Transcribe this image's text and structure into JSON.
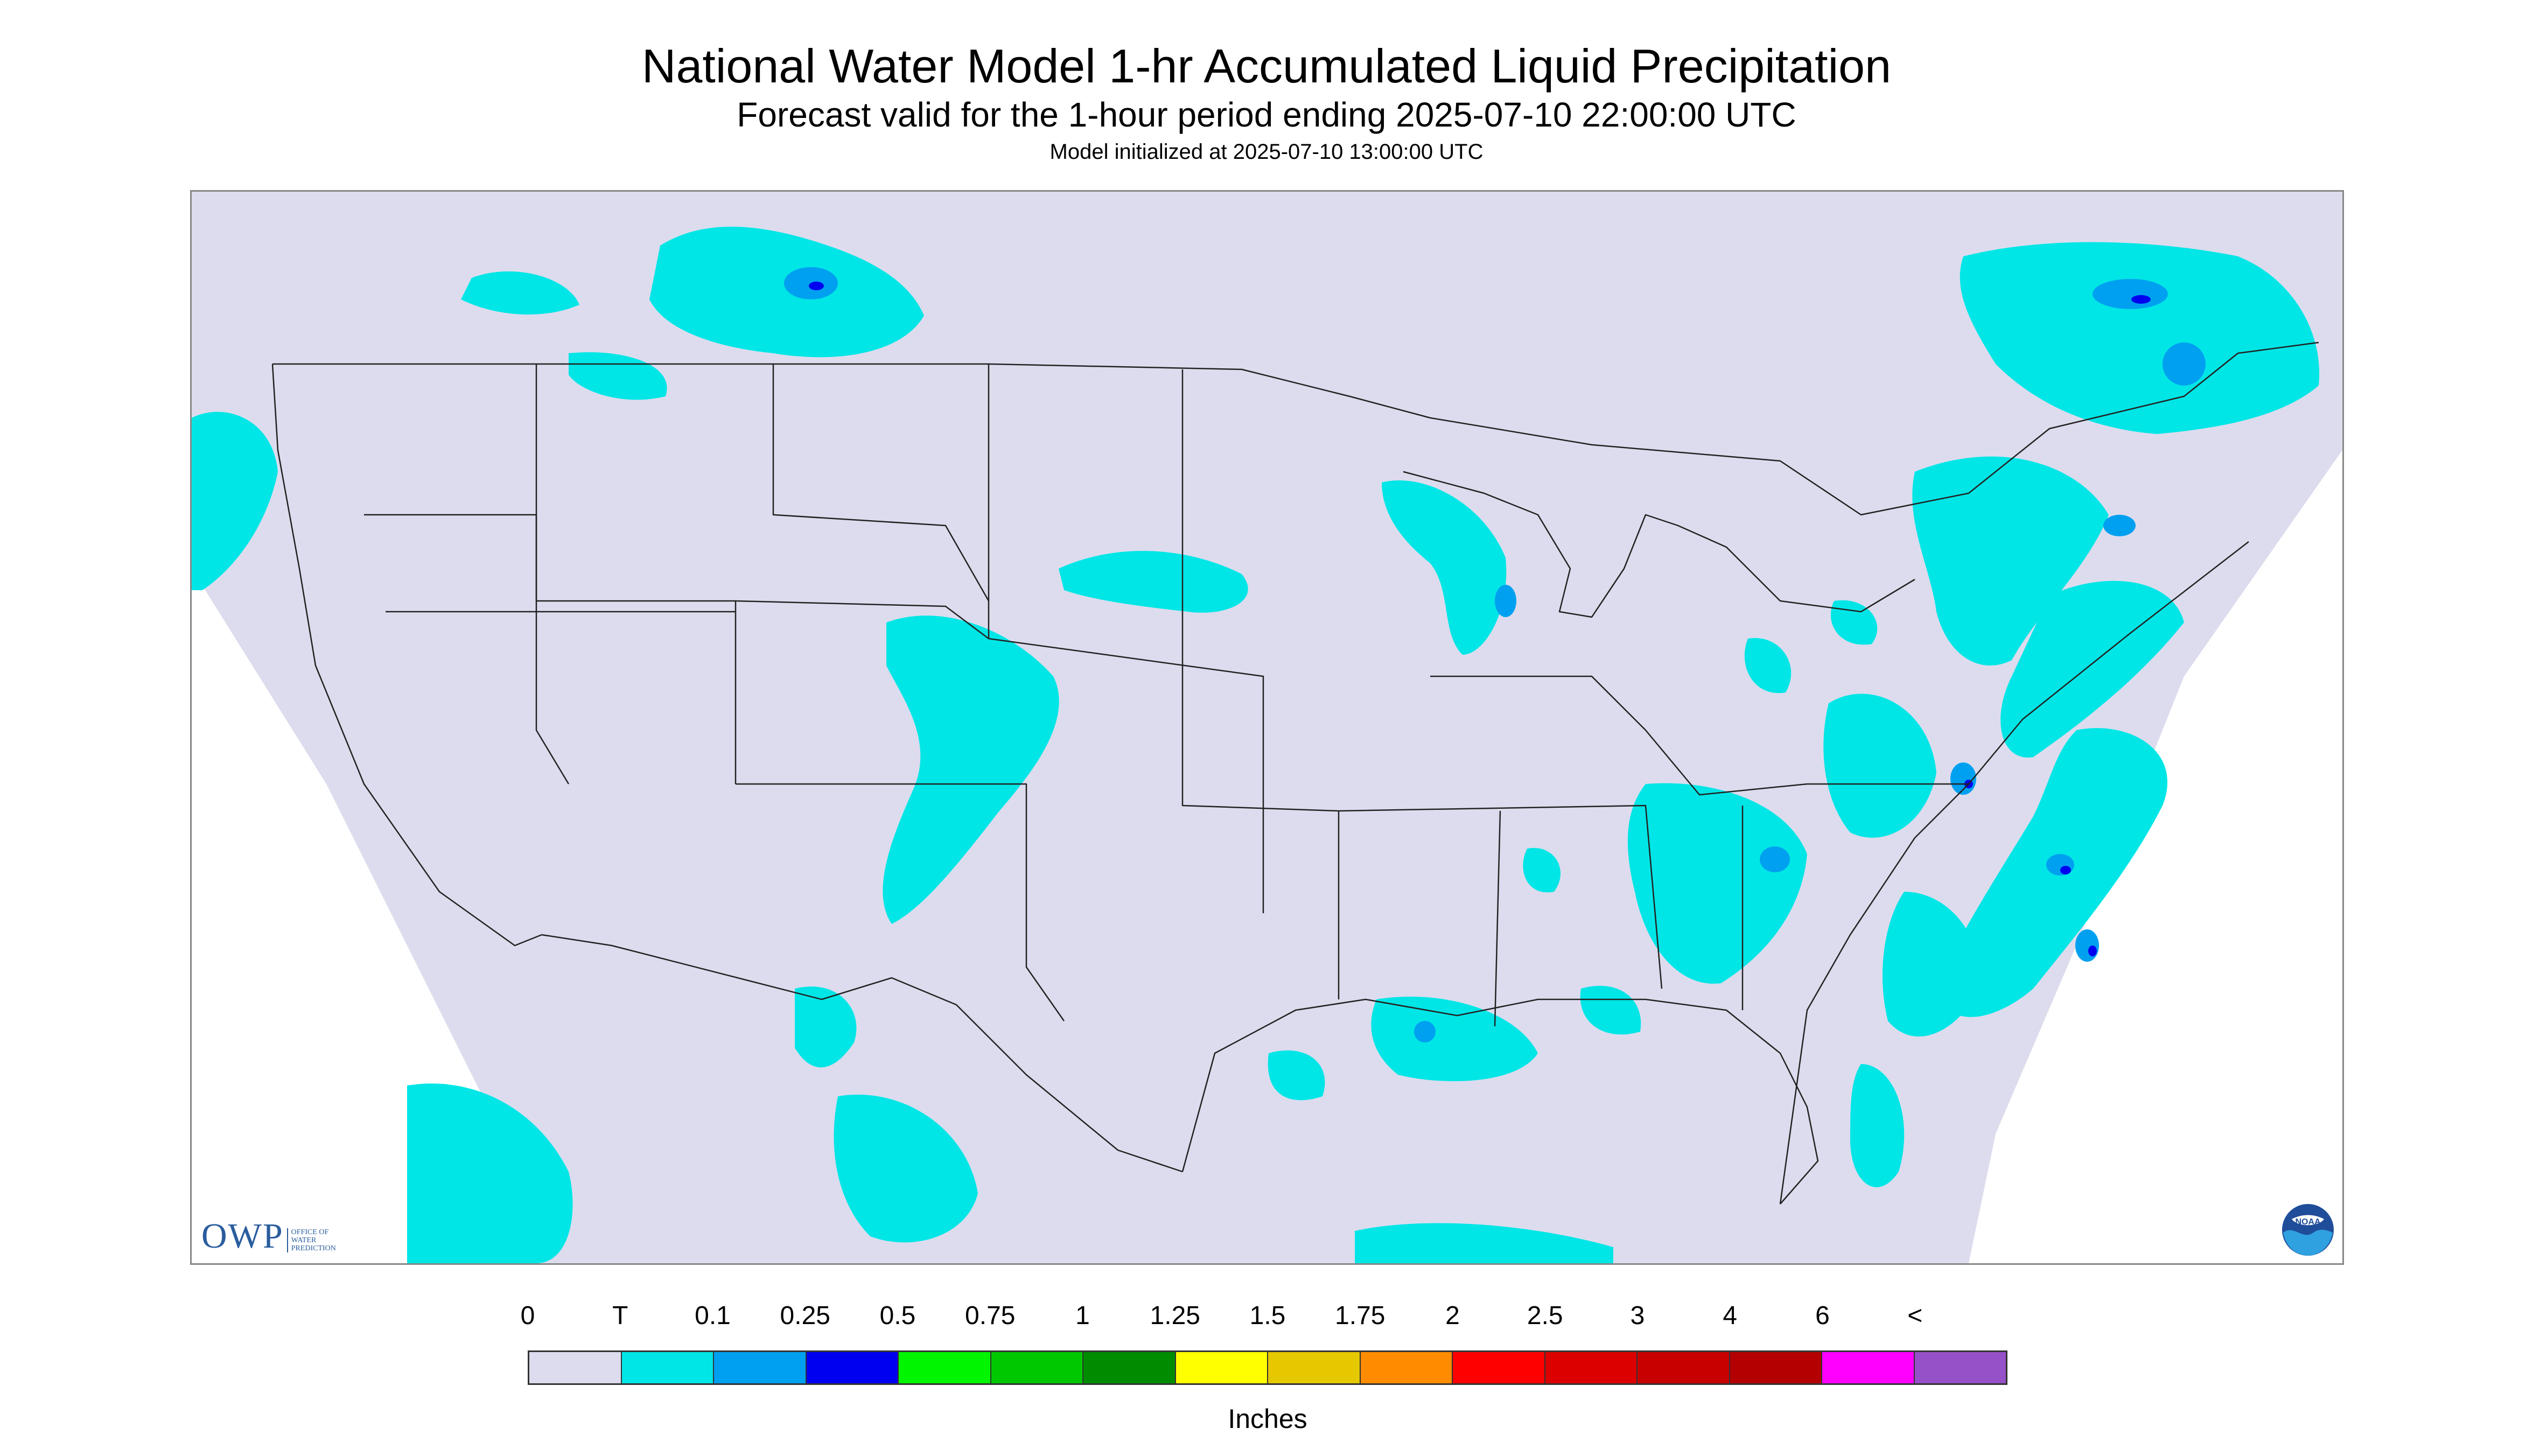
{
  "title": "National Water Model 1-hr Accumulated Liquid Precipitation",
  "subtitle": "Forecast valid for the 1-hour period ending 2025-07-10 22:00:00 UTC",
  "init_text": "Model initialized at 2025-07-10 13:00:00 UTC",
  "logos": {
    "owp_mark": "OWP",
    "owp_subtitle": [
      "OFFICE OF",
      "WATER",
      "PREDICTION"
    ],
    "noaa": "NOAA"
  },
  "legend": {
    "tick_labels": [
      "0",
      "T",
      "0.1",
      "0.25",
      "0.5",
      "0.75",
      "1",
      "1.25",
      "1.5",
      "1.75",
      "2",
      "2.5",
      "3",
      "4",
      "6",
      "<"
    ],
    "colors": [
      "#dcdcee",
      "#00e6e6",
      "#00a0f0",
      "#0000f0",
      "#00f500",
      "#00c800",
      "#008c00",
      "#ffff00",
      "#e6c800",
      "#ff8c00",
      "#ff0000",
      "#dc0000",
      "#c80000",
      "#b40000",
      "#ff00ff",
      "#9650c8"
    ],
    "units": "Inches"
  },
  "map_colors": {
    "background": "#dcdcee",
    "outside_domain": "#ffffff",
    "light_precip": "#00e6e6",
    "medium_precip": "#00a0f0",
    "heavy_precip": "#0000f0",
    "borders": "#222222"
  }
}
